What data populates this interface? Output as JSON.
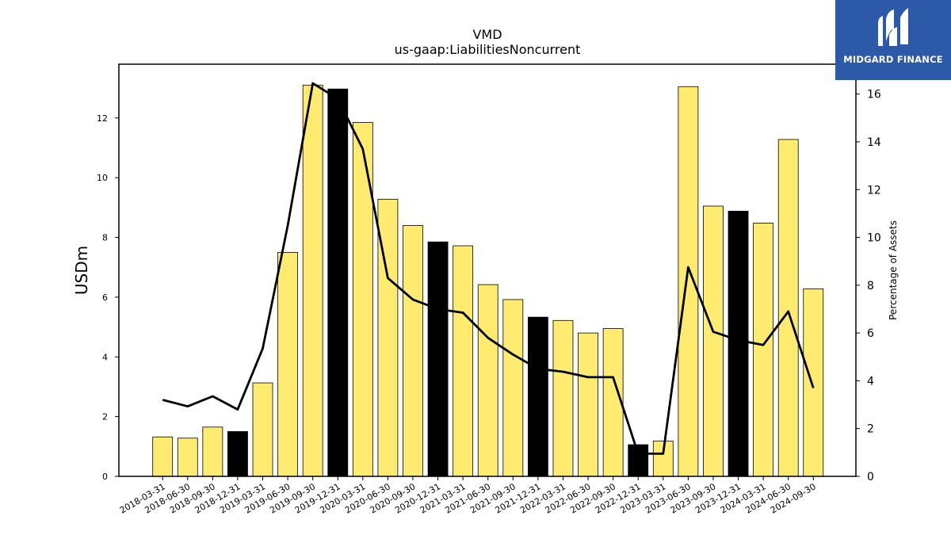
{
  "logo": {
    "text": "MIDGARD FINANCE",
    "icon": "midgard-logo-icon"
  },
  "chart_data": {
    "type": "bar",
    "title": "VMD",
    "subtitle": "us-gaap:LiabilitiesNoncurrent",
    "ylabel": "USDm",
    "y2label": "Percentage of Assets",
    "ylim": [
      0,
      13.8
    ],
    "y2lim": [
      0,
      17.25
    ],
    "yticks": [
      "0",
      "2",
      "4",
      "6",
      "8",
      "10",
      "12"
    ],
    "y2ticks": [
      "0",
      "2",
      "4",
      "6",
      "8",
      "10",
      "12",
      "14",
      "16"
    ],
    "categories": [
      "2018-03-31",
      "2018-06-30",
      "2018-09-30",
      "2018-12-31",
      "2019-03-31",
      "2019-06-30",
      "2019-09-30",
      "2019-12-31",
      "2020-03-31",
      "2020-06-30",
      "2020-09-30",
      "2020-12-31",
      "2021-03-31",
      "2021-06-30",
      "2021-09-30",
      "2021-12-31",
      "2022-03-31",
      "2022-06-30",
      "2022-09-30",
      "2022-12-31",
      "2023-03-31",
      "2023-06-30",
      "2023-09-30",
      "2023-12-31",
      "2024-03-31",
      "2024-06-30",
      "2024-09-30"
    ],
    "series": [
      {
        "values": [
          1.32,
          1.28,
          1.65,
          1.5,
          3.13,
          7.5,
          13.1,
          12.97,
          11.85,
          9.28,
          8.4,
          7.85,
          7.72,
          6.42,
          5.92,
          5.33,
          5.22,
          4.8,
          4.95,
          1.06,
          1.18,
          13.05,
          9.05,
          8.88,
          8.48,
          11.28,
          6.28
        ]
      },
      {
        "type": "line",
        "axis": "right",
        "values": [
          3.2,
          2.93,
          3.35,
          2.8,
          5.35,
          10.5,
          16.45,
          15.8,
          13.7,
          8.3,
          7.4,
          7.0,
          6.85,
          5.8,
          5.1,
          4.5,
          4.38,
          4.15,
          4.15,
          0.95,
          0.95,
          8.75,
          6.05,
          5.7,
          5.5,
          6.9,
          3.7
        ]
      }
    ],
    "highlighted_categories": [
      "2018-12-31",
      "2019-12-31",
      "2020-12-31",
      "2021-12-31",
      "2022-12-31",
      "2023-12-31"
    ],
    "colors": {
      "bar": "#ffeb70",
      "highlight": "#000000",
      "line": "#000000",
      "edge": "#000000"
    },
    "grid": false
  }
}
